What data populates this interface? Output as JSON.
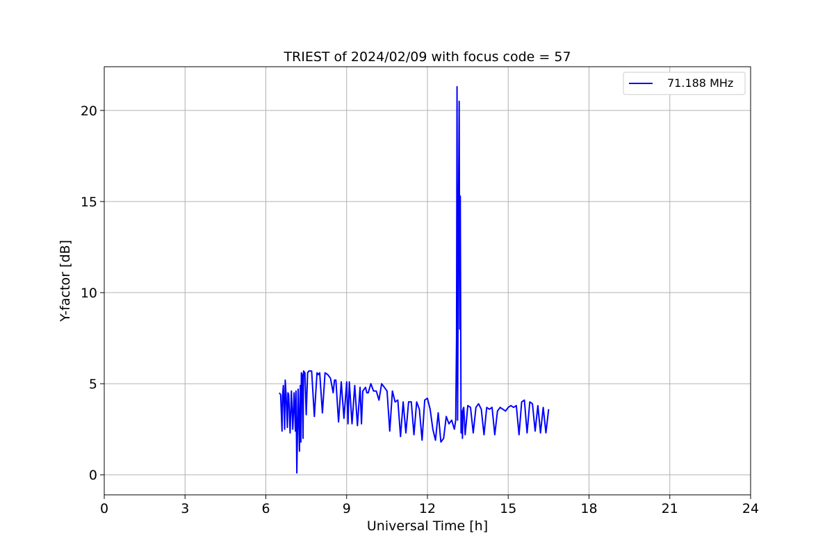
{
  "chart_data": {
    "type": "line",
    "title": "TRIEST of 2024/02/09 with focus code = 57",
    "xlabel": "Universal Time [h]",
    "ylabel": "Y-factor [dB]",
    "xlim": [
      0,
      24
    ],
    "ylim": [
      -1.1,
      22.4
    ],
    "xticks": [
      0,
      3,
      6,
      9,
      12,
      15,
      18,
      21,
      24
    ],
    "yticks": [
      0,
      5,
      10,
      15,
      20
    ],
    "grid": true,
    "legend_position": "top-right",
    "series": [
      {
        "name": "71.188 MHz",
        "color": "#0000ff",
        "x": [
          6.5,
          6.55,
          6.6,
          6.62,
          6.65,
          6.7,
          6.72,
          6.75,
          6.8,
          6.82,
          6.85,
          6.9,
          6.95,
          7.0,
          7.05,
          7.1,
          7.12,
          7.15,
          7.2,
          7.25,
          7.28,
          7.3,
          7.32,
          7.35,
          7.38,
          7.4,
          7.45,
          7.5,
          7.55,
          7.6,
          7.7,
          7.8,
          7.9,
          7.95,
          8.0,
          8.1,
          8.2,
          8.3,
          8.4,
          8.5,
          8.55,
          8.6,
          8.7,
          8.8,
          8.9,
          9.0,
          9.05,
          9.1,
          9.2,
          9.3,
          9.4,
          9.5,
          9.55,
          9.6,
          9.7,
          9.75,
          9.8,
          9.9,
          10.0,
          10.1,
          10.2,
          10.3,
          10.4,
          10.5,
          10.6,
          10.7,
          10.8,
          10.9,
          11.0,
          11.1,
          11.2,
          11.3,
          11.4,
          11.5,
          11.6,
          11.7,
          11.8,
          11.9,
          12.0,
          12.1,
          12.2,
          12.3,
          12.4,
          12.5,
          12.6,
          12.7,
          12.8,
          12.9,
          13.0,
          13.05,
          13.08,
          13.1,
          13.12,
          13.15,
          13.18,
          13.2,
          13.22,
          13.25,
          13.28,
          13.3,
          13.32,
          13.35,
          13.4,
          13.5,
          13.6,
          13.7,
          13.8,
          13.9,
          14.0,
          14.1,
          14.2,
          14.3,
          14.4,
          14.5,
          14.6,
          14.7,
          14.8,
          14.9,
          15.0,
          15.1,
          15.2,
          15.3,
          15.4,
          15.5,
          15.6,
          15.7,
          15.8,
          15.9,
          16.0,
          16.1,
          16.2,
          16.3,
          16.4,
          16.5
        ],
        "y": [
          4.5,
          4.4,
          2.4,
          4.3,
          4.9,
          2.5,
          5.2,
          4.4,
          2.6,
          4.5,
          4.4,
          2.3,
          4.6,
          2.5,
          4.5,
          2.4,
          4.6,
          0.1,
          4.7,
          1.3,
          4.9,
          1.8,
          5.6,
          5.5,
          2.0,
          5.7,
          5.6,
          3.3,
          5.6,
          5.7,
          5.7,
          3.2,
          5.6,
          5.5,
          5.6,
          3.4,
          5.6,
          5.5,
          5.3,
          4.5,
          5.2,
          5.2,
          2.9,
          5.1,
          3.1,
          5.1,
          2.8,
          5.1,
          2.8,
          4.9,
          2.7,
          4.8,
          2.8,
          4.6,
          4.8,
          4.5,
          4.5,
          5.0,
          4.6,
          4.6,
          4.1,
          5.0,
          4.8,
          4.6,
          2.4,
          4.6,
          4.0,
          4.1,
          2.1,
          4.0,
          2.3,
          4.0,
          4.0,
          2.2,
          4.0,
          3.6,
          1.9,
          4.1,
          4.2,
          3.6,
          2.5,
          1.9,
          3.4,
          1.8,
          2.0,
          3.2,
          2.8,
          3.0,
          2.5,
          3.0,
          7.5,
          21.3,
          3.0,
          14.0,
          20.5,
          8.0,
          15.3,
          2.3,
          3.5,
          2.0,
          3.6,
          3.7,
          2.2,
          3.8,
          3.7,
          2.3,
          3.7,
          3.9,
          3.6,
          2.2,
          3.7,
          3.6,
          3.7,
          2.2,
          3.5,
          3.7,
          3.6,
          3.5,
          3.7,
          3.8,
          3.7,
          3.8,
          2.2,
          4.0,
          4.1,
          2.3,
          4.0,
          3.9,
          2.4,
          3.8,
          2.3,
          3.7,
          2.3,
          3.6
        ]
      }
    ]
  }
}
